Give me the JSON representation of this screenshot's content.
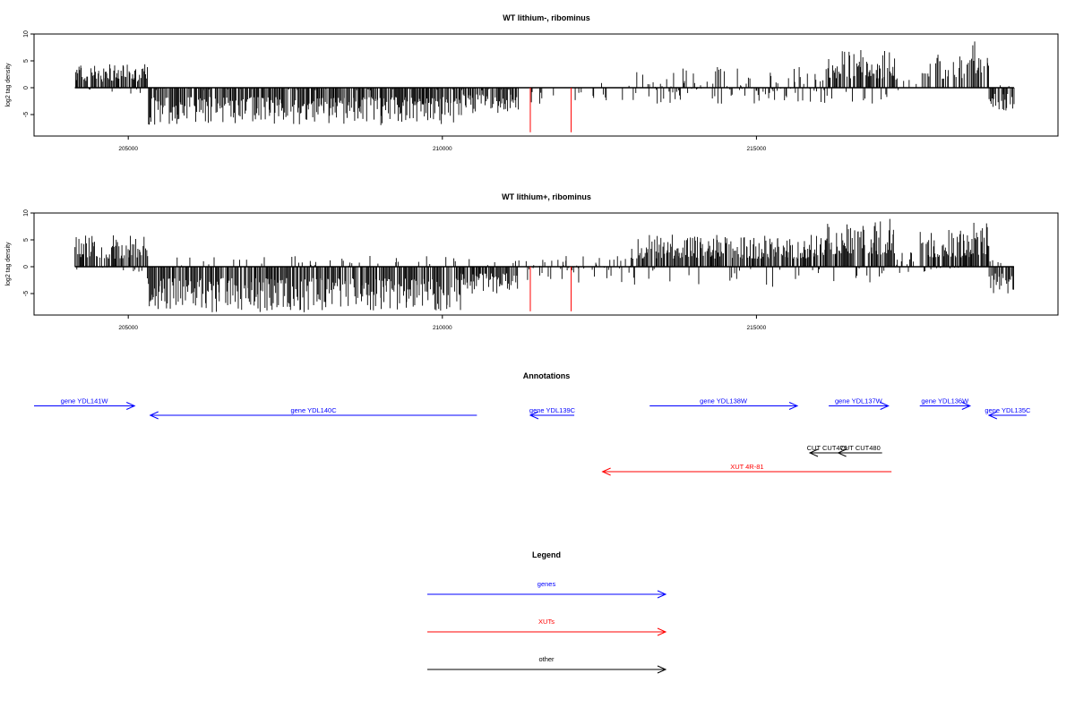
{
  "colors": {
    "gene": "#0000ff",
    "xut": "#ff0000",
    "other": "#000000",
    "axis": "#000000"
  },
  "chart_data": [
    {
      "type": "bar",
      "title": "WT lithium-, ribominus",
      "ylabel": "log2 tag density",
      "xlim": [
        203500,
        219800
      ],
      "ylim": [
        -9,
        10
      ],
      "yticks": [
        -5,
        0,
        5,
        10
      ],
      "xticks": [
        205000,
        210000,
        215000
      ],
      "x_range": [
        204150,
        219100
      ],
      "red_markers": [
        {
          "x": 211400,
          "y": -8.3
        },
        {
          "x": 212050,
          "y": -8.3
        }
      ],
      "profile": [
        {
          "from": 204150,
          "to": 205300,
          "min": -1.2,
          "max": 4.5,
          "sign": 1
        },
        {
          "from": 205300,
          "to": 210300,
          "min": -7,
          "max": -0.5,
          "sign": -1
        },
        {
          "from": 210300,
          "to": 211200,
          "min": -5,
          "max": -0.5,
          "sign": -1
        },
        {
          "from": 211200,
          "to": 213000,
          "min": -3,
          "max": 1,
          "sign": -1,
          "sparse": 0.1
        },
        {
          "from": 213000,
          "to": 216100,
          "min": -3,
          "max": 4,
          "sign": 0,
          "sparse": 0.55
        },
        {
          "from": 216100,
          "to": 217200,
          "min": -3,
          "max": 7,
          "sign": 1
        },
        {
          "from": 217200,
          "to": 217600,
          "min": -1,
          "max": 2,
          "sign": 0,
          "sparse": 0.2
        },
        {
          "from": 217600,
          "to": 218400,
          "min": 0,
          "max": 6.5,
          "sign": 1,
          "sparse": 0.5
        },
        {
          "from": 218400,
          "to": 218700,
          "min": 0,
          "max": 9,
          "sign": 1
        },
        {
          "from": 218700,
          "to": 219100,
          "min": -4.5,
          "max": 0.5,
          "sign": -1
        }
      ]
    },
    {
      "type": "bar",
      "title": "WT lithium+, ribominus",
      "ylabel": "log2 tag density",
      "xlim": [
        203500,
        219800
      ],
      "ylim": [
        -9,
        10
      ],
      "yticks": [
        -5,
        0,
        5,
        10
      ],
      "xticks": [
        205000,
        210000,
        215000
      ],
      "x_range": [
        204150,
        219100
      ],
      "red_markers": [
        {
          "x": 211400,
          "y": -8.3
        },
        {
          "x": 212050,
          "y": -8.3
        }
      ],
      "profile": [
        {
          "from": 204150,
          "to": 205300,
          "min": -1,
          "max": 6,
          "sign": 1
        },
        {
          "from": 205300,
          "to": 210300,
          "min": -8.5,
          "max": 2,
          "sign": -1
        },
        {
          "from": 210300,
          "to": 211200,
          "min": -5,
          "max": 2,
          "sign": -1
        },
        {
          "from": 211200,
          "to": 213000,
          "min": -3,
          "max": 2,
          "sign": 0,
          "sparse": 0.35
        },
        {
          "from": 213000,
          "to": 216100,
          "min": -4,
          "max": 6,
          "sign": 1
        },
        {
          "from": 216100,
          "to": 217200,
          "min": -3,
          "max": 9,
          "sign": 1
        },
        {
          "from": 217200,
          "to": 217600,
          "min": -2,
          "max": 3,
          "sign": 0,
          "sparse": 0.4
        },
        {
          "from": 217600,
          "to": 218400,
          "min": -1,
          "max": 7,
          "sign": 1
        },
        {
          "from": 218400,
          "to": 218700,
          "min": 0,
          "max": 8.5,
          "sign": 1
        },
        {
          "from": 218700,
          "to": 219100,
          "min": -5,
          "max": 1.5,
          "sign": -1
        }
      ]
    }
  ],
  "annotations": {
    "title": "Annotations",
    "features": [
      {
        "label": "gene YDL141W",
        "type": "gene",
        "strand": "+",
        "start": 203500,
        "end": 205100,
        "row": 1
      },
      {
        "label": "gene YDL140C",
        "type": "gene",
        "strand": "-",
        "start": 205350,
        "end": 210550,
        "row": 2
      },
      {
        "label": "gene YDL139C",
        "type": "gene",
        "strand": "-",
        "start": 211400,
        "end": 212100,
        "row": 2
      },
      {
        "label": "gene YDL138W",
        "type": "gene",
        "strand": "+",
        "start": 213300,
        "end": 215650,
        "row": 1
      },
      {
        "label": "gene YDL137W",
        "type": "gene",
        "strand": "+",
        "start": 216150,
        "end": 217100,
        "row": 1
      },
      {
        "label": "gene YDL136W",
        "type": "gene",
        "strand": "+",
        "start": 217600,
        "end": 218400,
        "row": 1
      },
      {
        "label": "gene YDL135C",
        "type": "gene",
        "strand": "-",
        "start": 218700,
        "end": 219300,
        "row": 2
      },
      {
        "label": "CUT CUT479",
        "type": "other",
        "strand": "-",
        "start": 215850,
        "end": 216400,
        "row": 6
      },
      {
        "label": "CUT CUT480",
        "type": "other",
        "strand": "-",
        "start": 216300,
        "end": 217000,
        "row": 6
      },
      {
        "label": "XUT 4R-81",
        "type": "xut",
        "strand": "-",
        "start": 212550,
        "end": 217150,
        "row": 8
      }
    ]
  },
  "legend": {
    "title": "Legend",
    "items": [
      {
        "label": "genes",
        "type": "gene"
      },
      {
        "label": "XUTs",
        "type": "xut"
      },
      {
        "label": "other",
        "type": "other"
      }
    ]
  }
}
